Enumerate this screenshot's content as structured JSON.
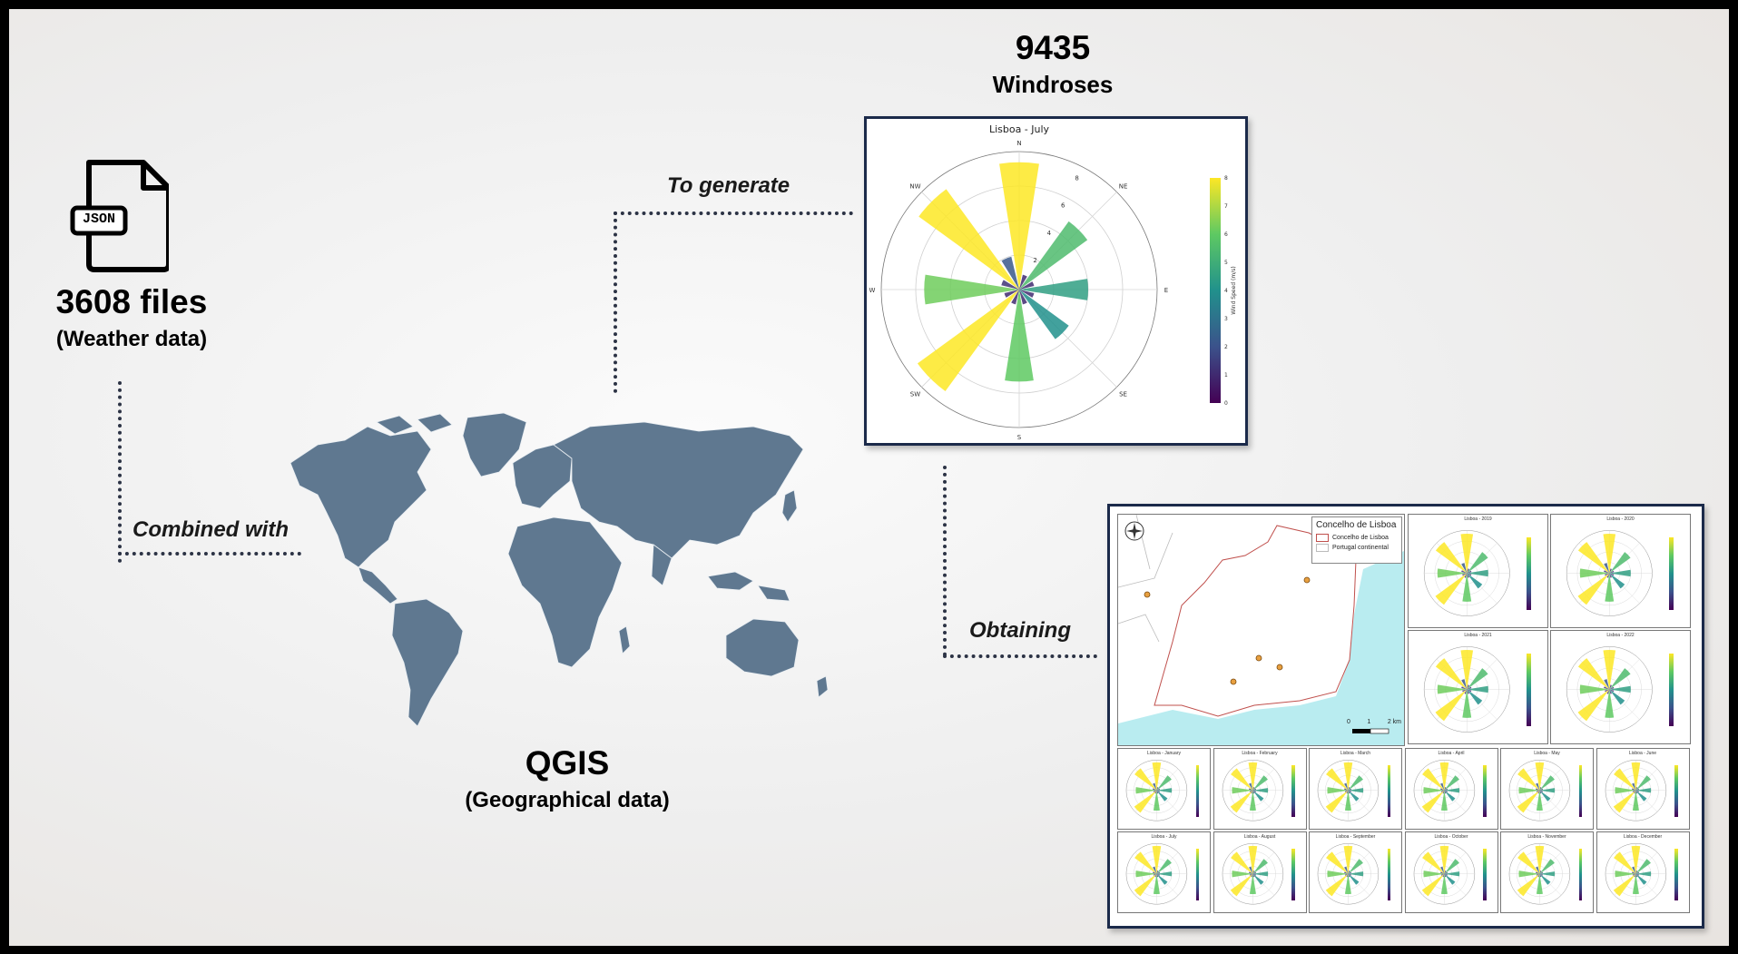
{
  "json_icon": {
    "badge": "JSON"
  },
  "files": {
    "count": "3608 files",
    "sub": "(Weather data)"
  },
  "combined_label": "Combined with",
  "qgis": {
    "title": "QGIS",
    "sub": "(Geographical data)"
  },
  "generate_label": "To generate",
  "windroses": {
    "count": "9435",
    "sub": "Windroses"
  },
  "obtaining_label": "Obtaining",
  "windrose_chart": {
    "title": "Lisboa - July",
    "directions": [
      "N",
      "NE",
      "E",
      "SE",
      "S",
      "SW",
      "W",
      "NW"
    ],
    "radial_ticks": [
      "2",
      "4",
      "6",
      "8"
    ],
    "colorbar_ticks": [
      "0",
      "1",
      "2",
      "3",
      "4",
      "5",
      "6",
      "7",
      "8"
    ],
    "colorbar_label": "Wind Speed (m/s)"
  },
  "chart_data": {
    "type": "windrose",
    "title": "Lisboa - July",
    "sectors": [
      "N",
      "NNE",
      "NE",
      "ENE",
      "E",
      "ESE",
      "SE",
      "SSE",
      "S",
      "SSW",
      "SW",
      "WSW",
      "W",
      "WNW",
      "NW",
      "NNW"
    ],
    "values": [
      8.3,
      1.0,
      5.5,
      1.0,
      4.5,
      1.0,
      4.0,
      1.0,
      6.0,
      1.0,
      8.2,
      1.0,
      6.2,
      1.2,
      8.1,
      2.2
    ],
    "rlim": [
      0,
      9
    ],
    "colorbar_range": [
      0,
      8
    ],
    "colorbar_label": "Wind Speed (m/s)"
  },
  "map_panel": {
    "legend_title": "Concelho de Lisboa",
    "legend_items": [
      "Concelho de Lisboa",
      "Portugal continental"
    ],
    "scale": [
      "0",
      "1",
      "2 km"
    ],
    "rose_titles": [
      "Lisboa - 2019",
      "Lisboa - 2020",
      "Lisboa - 2021",
      "Lisboa - 2022"
    ],
    "month_titles": [
      "Lisboa - January",
      "Lisboa - February",
      "Lisboa - March",
      "Lisboa - April",
      "Lisboa - May",
      "Lisboa - June",
      "Lisboa - July",
      "Lisboa - August",
      "Lisboa - September",
      "Lisboa - October",
      "Lisboa - November",
      "Lisboa - December"
    ]
  }
}
